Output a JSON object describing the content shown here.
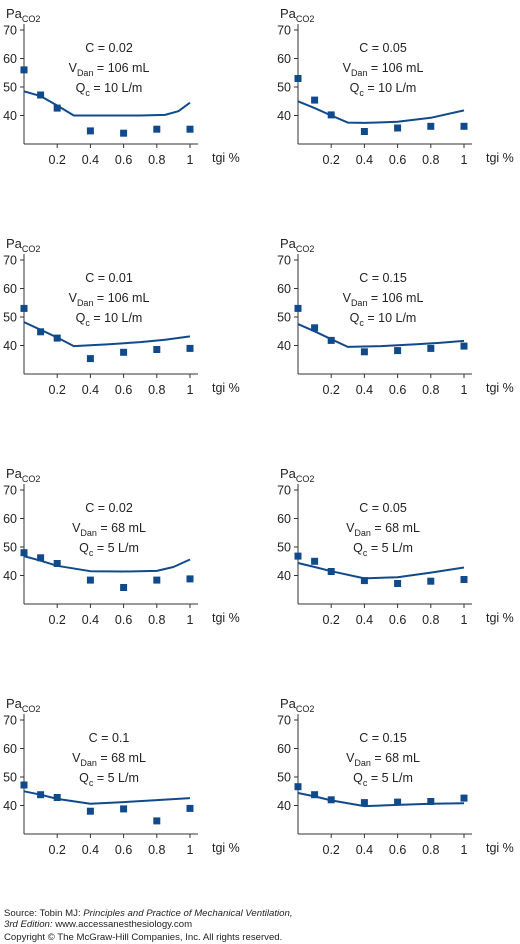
{
  "chart_data": [
    {
      "type": "scatter",
      "y_label_main": "Pa",
      "y_label_sub": "CO2",
      "x_label": "tgi %",
      "xlim": [
        0,
        1
      ],
      "ylim": [
        30,
        70
      ],
      "yticks": [
        40,
        50,
        60,
        70
      ],
      "xticks": [
        "0.2",
        "0.4",
        "0.6",
        "0.8",
        "1"
      ],
      "annotation": {
        "c": "C = 0.02",
        "vd_pre": "V",
        "vd_sub": "Dan",
        "vd_post": " = 106 mL",
        "qc_pre": "Q",
        "qc_sub": "c",
        "qc_post": " = 10 L/m"
      },
      "points": [
        [
          0,
          56
        ],
        [
          0.1,
          47.2
        ],
        [
          0.2,
          42.6
        ],
        [
          0.4,
          34.6
        ],
        [
          0.6,
          33.8
        ],
        [
          0.8,
          35.2
        ],
        [
          1,
          35.2
        ]
      ],
      "model_line": [
        [
          0,
          48.5
        ],
        [
          0.1,
          46.8
        ],
        [
          0.2,
          43.5
        ],
        [
          0.3,
          40
        ],
        [
          0.5,
          40
        ],
        [
          0.7,
          40
        ],
        [
          0.85,
          40.2
        ],
        [
          0.93,
          41.5
        ],
        [
          1,
          44.5
        ]
      ]
    },
    {
      "type": "scatter",
      "y_label_main": "Pa",
      "y_label_sub": "CO2",
      "x_label": "tgi %",
      "xlim": [
        0,
        1
      ],
      "ylim": [
        30,
        70
      ],
      "yticks": [
        40,
        50,
        60,
        70
      ],
      "xticks": [
        "0.2",
        "0.4",
        "0.6",
        "0.8",
        "1"
      ],
      "annotation": {
        "c": "C = 0.05",
        "vd_pre": "V",
        "vd_sub": "Dan",
        "vd_post": " = 106 mL",
        "qc_pre": "Q",
        "qc_sub": "c",
        "qc_post": " = 10 L/m"
      },
      "points": [
        [
          0,
          53
        ],
        [
          0.1,
          45.4
        ],
        [
          0.2,
          40.2
        ],
        [
          0.4,
          34.4
        ],
        [
          0.6,
          35.6
        ],
        [
          0.8,
          36.2
        ],
        [
          1,
          36.2
        ]
      ],
      "model_line": [
        [
          0,
          45
        ],
        [
          0.1,
          42.6
        ],
        [
          0.2,
          40
        ],
        [
          0.3,
          37.5
        ],
        [
          0.4,
          37.4
        ],
        [
          0.6,
          37.8
        ],
        [
          0.8,
          39.2
        ],
        [
          1,
          41.8
        ]
      ]
    },
    {
      "type": "scatter",
      "y_label_main": "Pa",
      "y_label_sub": "CO2",
      "x_label": "tgi %",
      "xlim": [
        0,
        1
      ],
      "ylim": [
        30,
        70
      ],
      "yticks": [
        40,
        50,
        60,
        70
      ],
      "xticks": [
        "0.2",
        "0.4",
        "0.6",
        "0.8",
        "1"
      ],
      "annotation": {
        "c": "C = 0.01",
        "vd_pre": "V",
        "vd_sub": "Dan",
        "vd_post": " = 106 mL",
        "qc_pre": "Q",
        "qc_sub": "c",
        "qc_post": " = 10 L/m"
      },
      "points": [
        [
          0,
          53
        ],
        [
          0.1,
          44.8
        ],
        [
          0.2,
          42.6
        ],
        [
          0.4,
          35.4
        ],
        [
          0.6,
          37.6
        ],
        [
          0.8,
          38.6
        ],
        [
          1,
          39
        ]
      ],
      "model_line": [
        [
          0,
          48.2
        ],
        [
          0.1,
          45.5
        ],
        [
          0.2,
          42.8
        ],
        [
          0.3,
          39.8
        ],
        [
          0.5,
          40.4
        ],
        [
          0.7,
          41.2
        ],
        [
          0.85,
          42
        ],
        [
          1,
          43.2
        ]
      ]
    },
    {
      "type": "scatter",
      "y_label_main": "Pa",
      "y_label_sub": "CO2",
      "x_label": "tgi %",
      "xlim": [
        0,
        1
      ],
      "ylim": [
        30,
        70
      ],
      "yticks": [
        40,
        50,
        60,
        70
      ],
      "xticks": [
        "0.2",
        "0.4",
        "0.6",
        "0.8",
        "1"
      ],
      "annotation": {
        "c": "C = 0.15",
        "vd_pre": "V",
        "vd_sub": "Dan",
        "vd_post": " = 106 mL",
        "qc_pre": "Q",
        "qc_sub": "c",
        "qc_post": " = 10 L/m"
      },
      "points": [
        [
          0,
          53
        ],
        [
          0.1,
          46.2
        ],
        [
          0.2,
          41.8
        ],
        [
          0.4,
          37.8
        ],
        [
          0.6,
          38.2
        ],
        [
          0.8,
          39
        ],
        [
          1,
          39.8
        ]
      ],
      "model_line": [
        [
          0,
          47.5
        ],
        [
          0.1,
          45
        ],
        [
          0.2,
          42.2
        ],
        [
          0.3,
          39.5
        ],
        [
          0.5,
          39.8
        ],
        [
          0.7,
          40.4
        ],
        [
          0.85,
          40.9
        ],
        [
          1,
          41.6
        ]
      ]
    },
    {
      "type": "scatter",
      "y_label_main": "Pa",
      "y_label_sub": "CO2",
      "x_label": "tgi %",
      "xlim": [
        0,
        1
      ],
      "ylim": [
        30,
        70
      ],
      "yticks": [
        40,
        50,
        60,
        70
      ],
      "xticks": [
        "0.2",
        "0.4",
        "0.6",
        "0.8",
        "1"
      ],
      "annotation": {
        "c": "C = 0.02",
        "vd_pre": "V",
        "vd_sub": "Dan",
        "vd_post": " = 68 mL",
        "qc_pre": "Q",
        "qc_sub": "c",
        "qc_post": " = 5 L/m"
      },
      "points": [
        [
          0,
          48
        ],
        [
          0.1,
          46.2
        ],
        [
          0.2,
          44.2
        ],
        [
          0.4,
          38.4
        ],
        [
          0.6,
          35.8
        ],
        [
          0.8,
          38.4
        ],
        [
          1,
          38.8
        ]
      ],
      "model_line": [
        [
          0,
          46.8
        ],
        [
          0.1,
          45.2
        ],
        [
          0.2,
          43.4
        ],
        [
          0.4,
          41.5
        ],
        [
          0.6,
          41.4
        ],
        [
          0.8,
          41.6
        ],
        [
          0.9,
          43
        ],
        [
          1,
          45.6
        ]
      ]
    },
    {
      "type": "scatter",
      "y_label_main": "Pa",
      "y_label_sub": "CO2",
      "x_label": "tgi %",
      "xlim": [
        0,
        1
      ],
      "ylim": [
        30,
        70
      ],
      "yticks": [
        40,
        50,
        60,
        70
      ],
      "xticks": [
        "0.2",
        "0.4",
        "0.6",
        "0.8",
        "1"
      ],
      "annotation": {
        "c": "C = 0.05",
        "vd_pre": "V",
        "vd_sub": "Dan",
        "vd_post": " = 68 mL",
        "qc_pre": "Q",
        "qc_sub": "c",
        "qc_post": " = 5 L/m"
      },
      "points": [
        [
          0,
          46.8
        ],
        [
          0.1,
          45
        ],
        [
          0.2,
          41.4
        ],
        [
          0.4,
          38.2
        ],
        [
          0.6,
          37.2
        ],
        [
          0.8,
          38
        ],
        [
          1,
          38.6
        ]
      ],
      "model_line": [
        [
          0,
          44.4
        ],
        [
          0.1,
          43
        ],
        [
          0.2,
          41.5
        ],
        [
          0.4,
          39
        ],
        [
          0.6,
          39.4
        ],
        [
          0.8,
          41
        ],
        [
          1,
          42.8
        ]
      ]
    },
    {
      "type": "scatter",
      "y_label_main": "Pa",
      "y_label_sub": "CO2",
      "x_label": "tgi %",
      "xlim": [
        0,
        1
      ],
      "ylim": [
        30,
        70
      ],
      "yticks": [
        40,
        50,
        60,
        70
      ],
      "xticks": [
        "0.2",
        "0.4",
        "0.6",
        "0.8",
        "1"
      ],
      "annotation": {
        "c": "C = 0.1",
        "vd_pre": "V",
        "vd_sub": "Dan",
        "vd_post": " = 68 mL",
        "qc_pre": "Q",
        "qc_sub": "c",
        "qc_post": " = 5 L/m"
      },
      "points": [
        [
          0,
          47.2
        ],
        [
          0.1,
          43.8
        ],
        [
          0.2,
          42.8
        ],
        [
          0.4,
          38
        ],
        [
          0.6,
          38.8
        ],
        [
          0.8,
          34.6
        ],
        [
          1,
          39
        ]
      ],
      "model_line": [
        [
          0,
          45
        ],
        [
          0.1,
          43.8
        ],
        [
          0.2,
          42.3
        ],
        [
          0.4,
          40.6
        ],
        [
          0.6,
          41.2
        ],
        [
          0.8,
          41.9
        ],
        [
          1,
          42.6
        ]
      ]
    },
    {
      "type": "scatter",
      "y_label_main": "Pa",
      "y_label_sub": "CO2",
      "x_label": "tgi %",
      "xlim": [
        0,
        1
      ],
      "ylim": [
        30,
        70
      ],
      "yticks": [
        40,
        50,
        60,
        70
      ],
      "xticks": [
        "0.2",
        "0.4",
        "0.6",
        "0.8",
        "1"
      ],
      "annotation": {
        "c": "C = 0.15",
        "vd_pre": "V",
        "vd_sub": "Dan",
        "vd_post": " = 68 mL",
        "qc_pre": "Q",
        "qc_sub": "c",
        "qc_post": " = 5 L/m"
      },
      "points": [
        [
          0,
          46.6
        ],
        [
          0.1,
          43.8
        ],
        [
          0.2,
          42
        ],
        [
          0.4,
          41
        ],
        [
          0.6,
          41.2
        ],
        [
          0.8,
          41.4
        ],
        [
          1,
          42.6
        ]
      ],
      "model_line": [
        [
          0,
          44.4
        ],
        [
          0.1,
          43.2
        ],
        [
          0.2,
          41.8
        ],
        [
          0.4,
          39.8
        ],
        [
          0.6,
          40.2
        ],
        [
          0.8,
          40.6
        ],
        [
          1,
          40.8
        ]
      ]
    }
  ],
  "colors": {
    "series": "#114a8b",
    "axis": "#333333",
    "text": "#222222"
  },
  "footer": {
    "source_prefix": "Source: Tobin MJ: ",
    "book_title": "Principles and Practice of Mechanical Ventilation,",
    "edition": "3rd Edition:",
    "website": " www.accessanesthesiology.com",
    "copyright": "Copyright © The McGraw-Hill Companies, Inc. All rights reserved."
  }
}
